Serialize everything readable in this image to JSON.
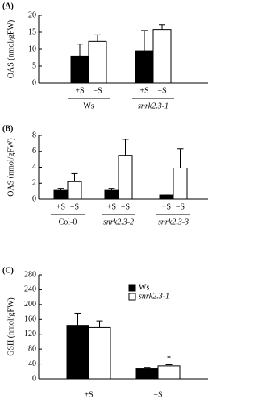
{
  "chart_data": [
    {
      "type": "bar",
      "title": "(A)",
      "y_label": "OAS (nmol/gFW)",
      "categories": [
        "Ws",
        "snrk2.3-1"
      ],
      "italic_categories": [
        false,
        true
      ],
      "series": [
        {
          "name": "+S",
          "color": "#000000",
          "values": [
            8,
            9.5
          ],
          "errors": [
            3.5,
            6
          ]
        },
        {
          "name": "−S",
          "color": "#ffffff",
          "values": [
            12.3,
            15.8
          ],
          "errors": [
            1.9,
            1.4
          ]
        }
      ],
      "ylim": [
        0,
        20
      ],
      "yticks": [
        0,
        5,
        10,
        15,
        20
      ],
      "legend": false
    },
    {
      "type": "bar",
      "title": "(B)",
      "y_label": "OAS (nmol/gFW)",
      "categories": [
        "Col-0",
        "snrk2.3-2",
        "snrk2.3-3"
      ],
      "italic_categories": [
        false,
        true,
        true
      ],
      "series": [
        {
          "name": "+S",
          "color": "#000000",
          "values": [
            1.1,
            1.1,
            0.5
          ],
          "errors": [
            0.25,
            0.25,
            0
          ]
        },
        {
          "name": "−S",
          "color": "#ffffff",
          "values": [
            2.2,
            5.5,
            3.9
          ],
          "errors": [
            1.0,
            2.0,
            2.4
          ]
        }
      ],
      "ylim": [
        0,
        8
      ],
      "yticks": [
        0,
        2,
        4,
        6,
        8
      ],
      "legend": false
    },
    {
      "type": "bar",
      "title": "(C)",
      "y_label": "GSH (nmol/gFW)",
      "categories": [
        "+S",
        "−S"
      ],
      "series": [
        {
          "name": "Ws",
          "color": "#000000",
          "values": [
            144,
            27
          ],
          "errors": [
            33,
            4
          ]
        },
        {
          "name": "snrk2.3-1",
          "color": "#ffffff",
          "italic": true,
          "values": [
            138,
            35
          ],
          "errors": [
            18,
            3
          ]
        }
      ],
      "ylim": [
        0,
        280
      ],
      "yticks": [
        0,
        40,
        80,
        120,
        160,
        200,
        240,
        280
      ],
      "legend": true,
      "annotations": [
        {
          "text": "*",
          "series": 1,
          "category": 1
        }
      ]
    }
  ]
}
